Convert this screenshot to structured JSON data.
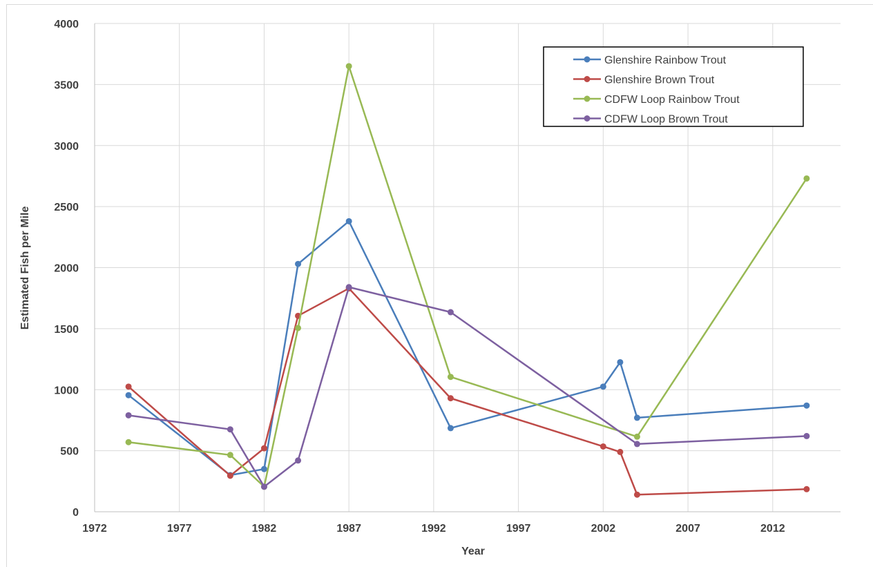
{
  "chart_data": {
    "type": "line",
    "title": "",
    "xlabel": "Year",
    "ylabel": "Estimated Fish per Mile",
    "xlim": [
      1972,
      2016
    ],
    "ylim": [
      0,
      4000
    ],
    "x_ticks": [
      1972,
      1977,
      1982,
      1987,
      1992,
      1997,
      2002,
      2007,
      2012
    ],
    "y_ticks": [
      0,
      500,
      1000,
      1500,
      2000,
      2500,
      3000,
      3500,
      4000
    ],
    "grid": true,
    "legend": {
      "position": "top-right"
    },
    "series": [
      {
        "name": "Glenshire Rainbow Trout",
        "color": "#4a7ebb",
        "points": [
          [
            1974,
            955
          ],
          [
            1980,
            300
          ],
          [
            1982,
            350
          ],
          [
            1984,
            2030
          ],
          [
            1987,
            2380
          ],
          [
            1993,
            685
          ],
          [
            2002,
            1025
          ],
          [
            2003,
            1225
          ],
          [
            2004,
            770
          ],
          [
            2014,
            870
          ]
        ]
      },
      {
        "name": "Glenshire Brown Trout",
        "color": "#be4b48",
        "points": [
          [
            1974,
            1025
          ],
          [
            1980,
            295
          ],
          [
            1982,
            520
          ],
          [
            1984,
            1605
          ],
          [
            1987,
            1830
          ],
          [
            1993,
            930
          ],
          [
            2002,
            535
          ],
          [
            2003,
            490
          ],
          [
            2004,
            140
          ],
          [
            2014,
            185
          ]
        ]
      },
      {
        "name": "CDFW Loop Rainbow Trout",
        "color": "#98b954",
        "points": [
          [
            1974,
            570
          ],
          [
            1980,
            465
          ],
          [
            1982,
            205
          ],
          [
            1984,
            1505
          ],
          [
            1987,
            3650
          ],
          [
            1993,
            1105
          ],
          [
            2004,
            615
          ],
          [
            2014,
            2730
          ]
        ]
      },
      {
        "name": "CDFW Loop Brown Trout",
        "color": "#7d60a0",
        "points": [
          [
            1974,
            790
          ],
          [
            1980,
            675
          ],
          [
            1982,
            205
          ],
          [
            1984,
            420
          ],
          [
            1987,
            1840
          ],
          [
            1993,
            1635
          ],
          [
            2004,
            555
          ],
          [
            2014,
            620
          ]
        ]
      }
    ]
  }
}
